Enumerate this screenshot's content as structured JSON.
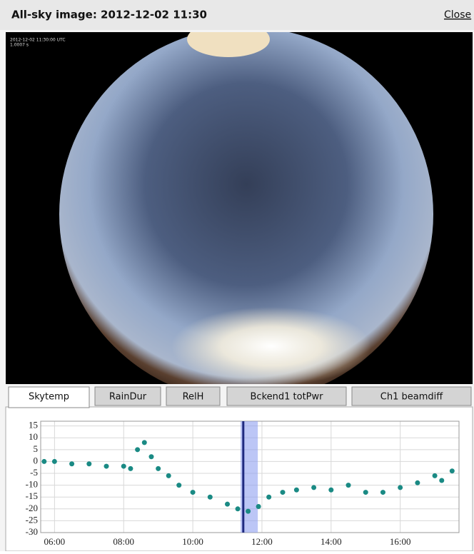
{
  "header": {
    "title": "All-sky image: 2012-12-02 11:30",
    "close": "Close"
  },
  "image": {
    "timestamp": "2012-12-02 11:30:00 UTC",
    "exposure": "1.0007 s"
  },
  "tabs": [
    "Skytemp",
    "RainDur",
    "RelH",
    "Bckend1 totPwr",
    "Ch1 beamdiff"
  ],
  "active_tab": 0,
  "chart_data": {
    "type": "scatter",
    "color": "#1a8a84",
    "grid": true,
    "x": [
      5.7,
      6,
      6.5,
      7,
      7.5,
      8,
      8.2,
      8.4,
      8.6,
      8.8,
      9,
      9.3,
      9.6,
      10,
      10.5,
      11,
      11.3,
      11.6,
      11.9,
      12.2,
      12.6,
      13,
      13.5,
      14,
      14.5,
      15,
      15.5,
      16,
      16.5,
      17,
      17.2,
      17.5
    ],
    "values": [
      0,
      0,
      -1,
      -1,
      -2,
      -2,
      -3,
      5,
      8,
      2,
      -3,
      -6,
      -10,
      -13,
      -15,
      -18,
      -20,
      -21,
      -19,
      -15,
      -13,
      -12,
      -11,
      -12,
      -10,
      -13,
      -13,
      -11,
      -9,
      -6,
      -8,
      -4
    ],
    "xlim": [
      5.6,
      17.7
    ],
    "ylim": [
      -30,
      17
    ],
    "xticks": [
      {
        "value": 6,
        "label": "06:00"
      },
      {
        "value": 8,
        "label": "08:00"
      },
      {
        "value": 10,
        "label": "10:00"
      },
      {
        "value": 12,
        "label": "12:00"
      },
      {
        "value": 14,
        "label": "14:00"
      },
      {
        "value": 16,
        "label": "16:00"
      }
    ],
    "yticks": [
      15,
      10,
      5,
      0,
      -5,
      -10,
      -15,
      -20,
      -25,
      -30
    ],
    "highlight": {
      "start": 11.38,
      "end": 11.88,
      "current": 11.46
    }
  }
}
